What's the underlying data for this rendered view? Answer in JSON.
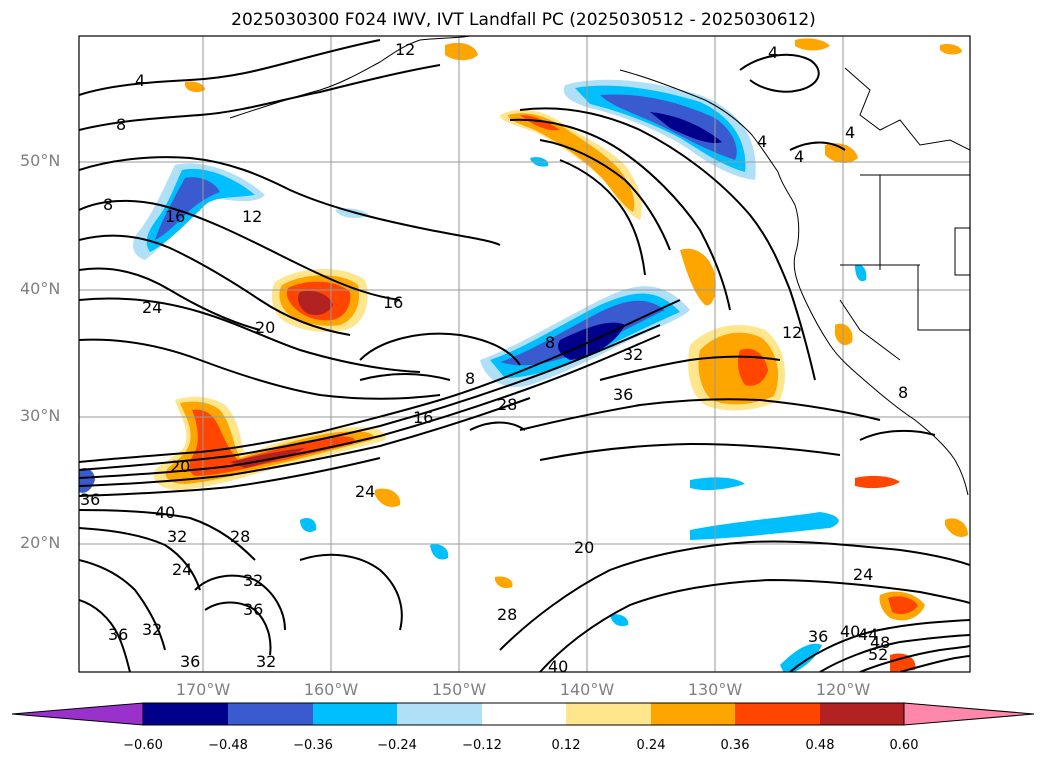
{
  "title": "2025030300 F024 IWV, IVT Landfall PC (2025030512 - 2025030612)",
  "lat_labels": [
    "50°N",
    "40°N",
    "30°N",
    "20°N"
  ],
  "lon_labels": [
    "170°W",
    "160°W",
    "150°W",
    "140°W",
    "130°W",
    "120°W"
  ],
  "colorbar": {
    "colors": [
      "#9932cc",
      "#00008b",
      "#3a5bd0",
      "#00bfff",
      "#b0e0f8",
      "#ffffff",
      "#ffe68c",
      "#ffa500",
      "#ff4500",
      "#b22222",
      "#ff88aa"
    ],
    "tick_labels": [
      "−0.60",
      "−0.48",
      "−0.36",
      "−0.24",
      "−0.12",
      "0.12",
      "0.24",
      "0.36",
      "0.48",
      "0.60"
    ],
    "extend": "both"
  },
  "contour_labels": [
    "4",
    "8",
    "12",
    "16",
    "20",
    "24",
    "28",
    "32",
    "36",
    "40",
    "44",
    "48",
    "52"
  ]
}
